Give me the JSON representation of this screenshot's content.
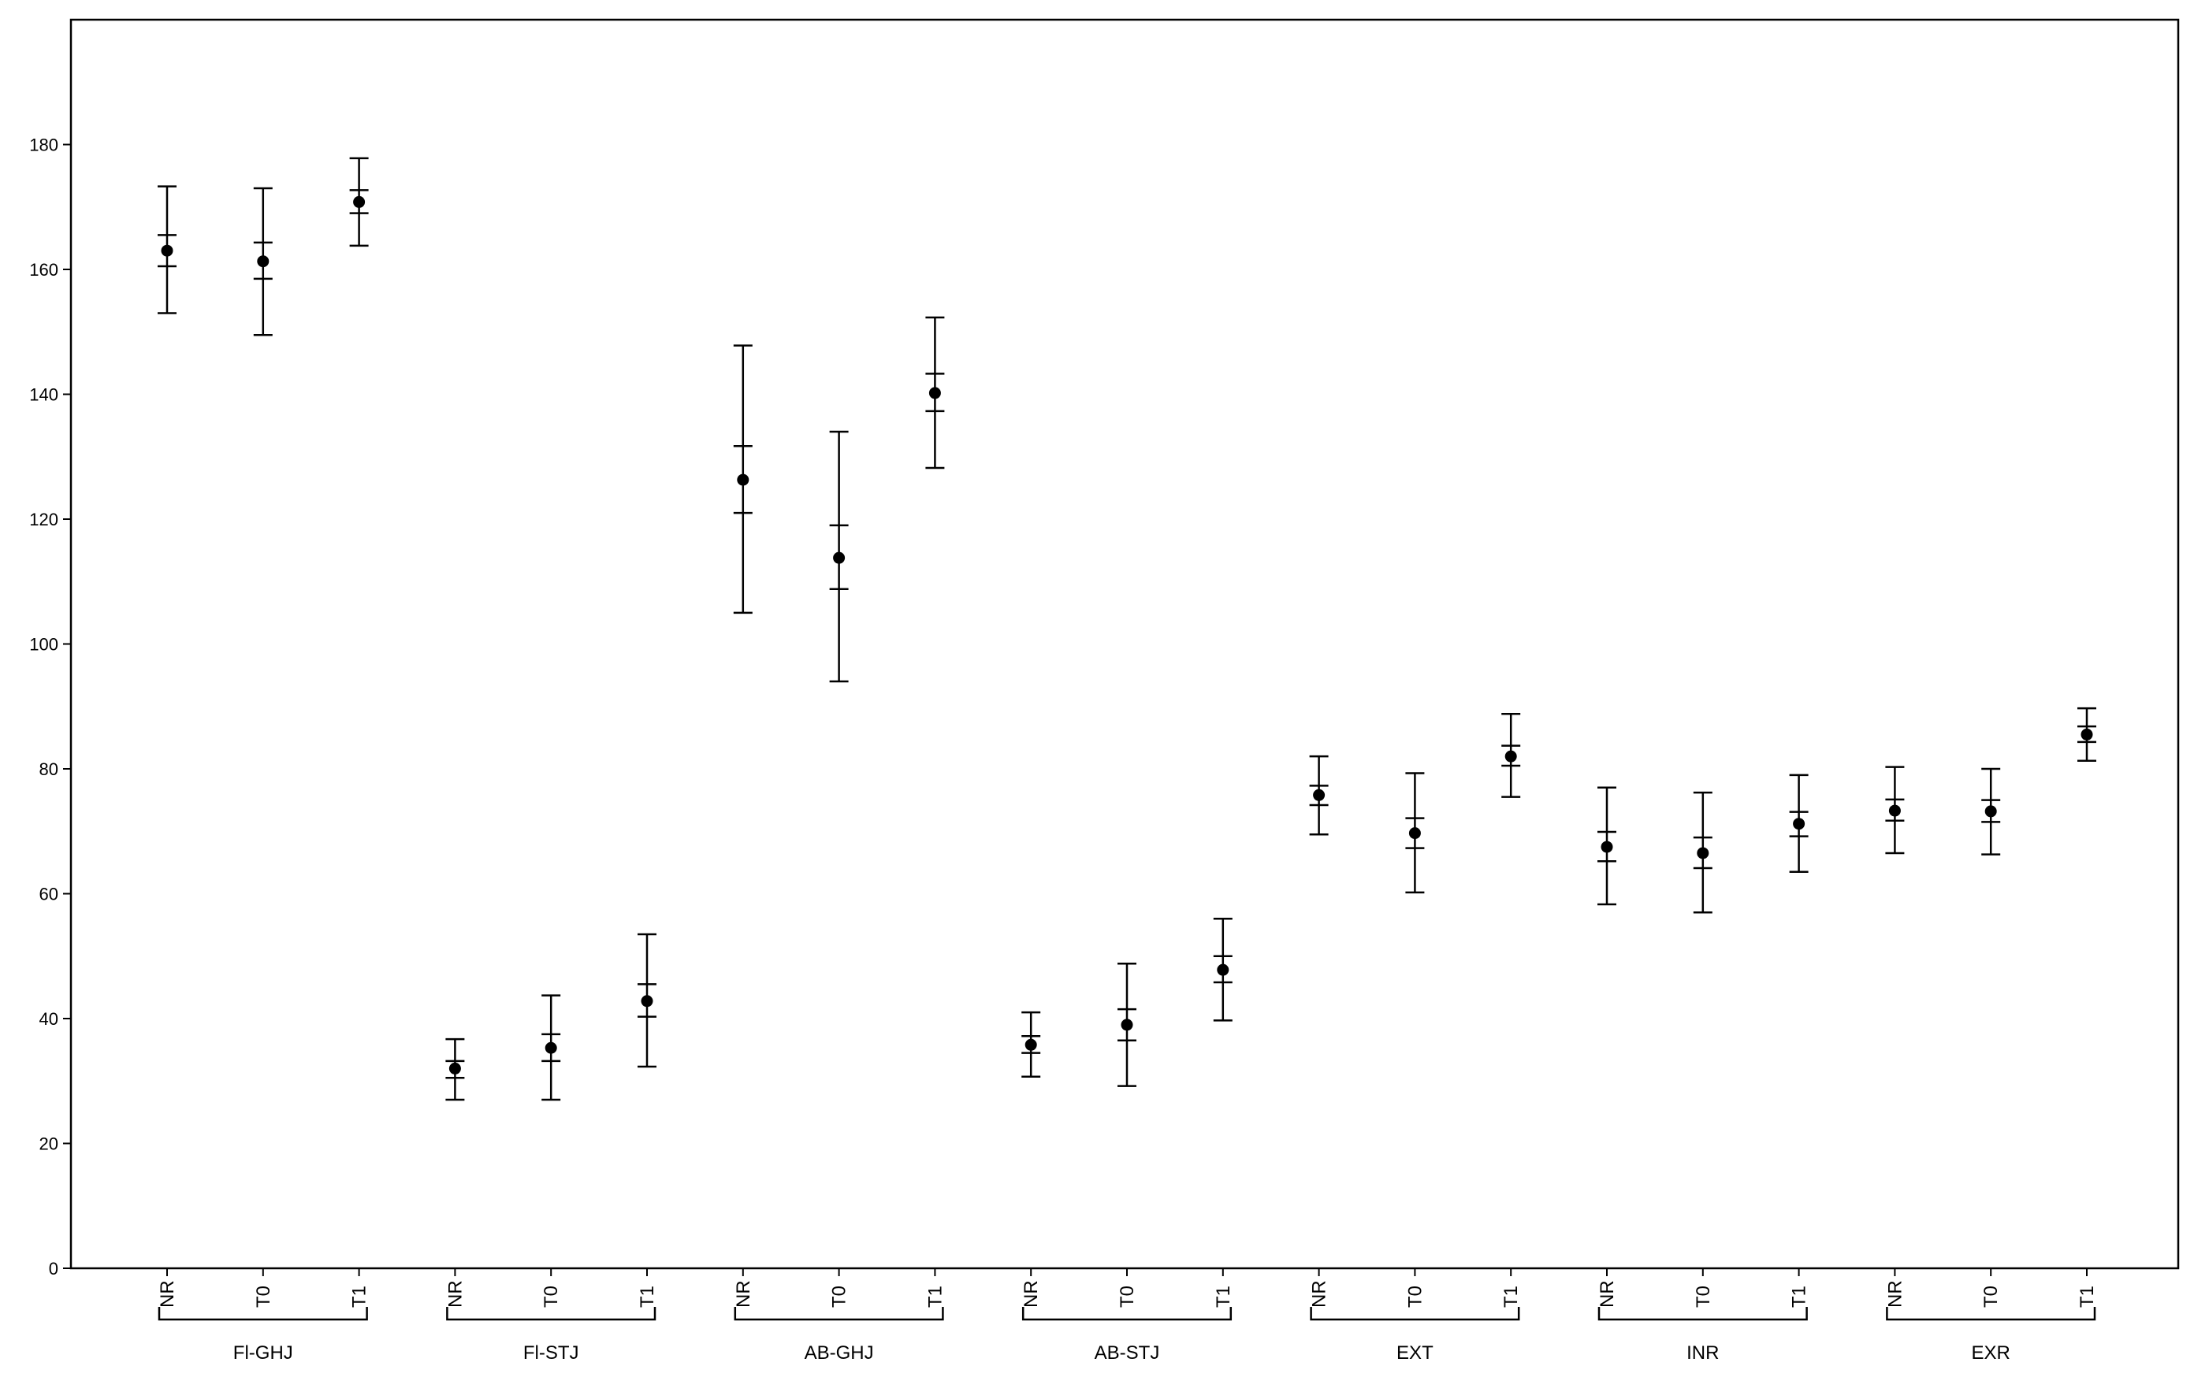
{
  "chart_data": {
    "type": "scatter",
    "title": "",
    "xlabel": "",
    "ylabel": "",
    "ylim": [
      0,
      200
    ],
    "yticks": [
      0,
      20,
      40,
      60,
      80,
      100,
      120,
      140,
      160,
      180
    ],
    "grid": false,
    "subcategories": [
      "NR",
      "T0",
      "T1"
    ],
    "groups": [
      {
        "name": "Fl-GHJ",
        "points": [
          {
            "label": "NR",
            "mean": 163,
            "ci_low": 160.5,
            "ci_high": 165.5,
            "min": 153,
            "max": 173.3
          },
          {
            "label": "T0",
            "mean": 161.3,
            "ci_low": 158.5,
            "ci_high": 164.3,
            "min": 149.5,
            "max": 173
          },
          {
            "label": "T1",
            "mean": 170.8,
            "ci_low": 169,
            "ci_high": 172.7,
            "min": 163.8,
            "max": 177.8
          }
        ]
      },
      {
        "name": "Fl-STJ",
        "points": [
          {
            "label": "NR",
            "mean": 32,
            "ci_low": 30.5,
            "ci_high": 33.2,
            "min": 27,
            "max": 36.7
          },
          {
            "label": "T0",
            "mean": 35.3,
            "ci_low": 33.2,
            "ci_high": 37.5,
            "min": 27,
            "max": 43.7
          },
          {
            "label": "T1",
            "mean": 42.8,
            "ci_low": 40.3,
            "ci_high": 45.5,
            "min": 32.3,
            "max": 53.5
          }
        ]
      },
      {
        "name": "AB-GHJ",
        "points": [
          {
            "label": "NR",
            "mean": 126.3,
            "ci_low": 121,
            "ci_high": 131.7,
            "min": 105,
            "max": 147.8
          },
          {
            "label": "T0",
            "mean": 113.8,
            "ci_low": 108.8,
            "ci_high": 119,
            "min": 94,
            "max": 134
          },
          {
            "label": "T1",
            "mean": 140.2,
            "ci_low": 137.3,
            "ci_high": 143.3,
            "min": 128.2,
            "max": 152.3
          }
        ]
      },
      {
        "name": "AB-STJ",
        "points": [
          {
            "label": "NR",
            "mean": 35.8,
            "ci_low": 34.5,
            "ci_high": 37.2,
            "min": 30.7,
            "max": 41
          },
          {
            "label": "T0",
            "mean": 39,
            "ci_low": 36.5,
            "ci_high": 41.5,
            "min": 29.2,
            "max": 48.8
          },
          {
            "label": "T1",
            "mean": 47.8,
            "ci_low": 45.8,
            "ci_high": 50,
            "min": 39.7,
            "max": 56
          }
        ]
      },
      {
        "name": "EXT",
        "points": [
          {
            "label": "NR",
            "mean": 75.8,
            "ci_low": 74.2,
            "ci_high": 77.3,
            "min": 69.5,
            "max": 82
          },
          {
            "label": "T0",
            "mean": 69.7,
            "ci_low": 67.3,
            "ci_high": 72.1,
            "min": 60.2,
            "max": 79.3
          },
          {
            "label": "T1",
            "mean": 82,
            "ci_low": 80.5,
            "ci_high": 83.7,
            "min": 75.5,
            "max": 88.8
          }
        ]
      },
      {
        "name": "INR",
        "points": [
          {
            "label": "NR",
            "mean": 67.5,
            "ci_low": 65.2,
            "ci_high": 69.9,
            "min": 58.3,
            "max": 77
          },
          {
            "label": "T0",
            "mean": 66.5,
            "ci_low": 64.1,
            "ci_high": 69,
            "min": 57,
            "max": 76.2
          },
          {
            "label": "T1",
            "mean": 71.2,
            "ci_low": 69.2,
            "ci_high": 73.1,
            "min": 63.5,
            "max": 79
          }
        ]
      },
      {
        "name": "EXR",
        "points": [
          {
            "label": "NR",
            "mean": 73.3,
            "ci_low": 71.7,
            "ci_high": 75.1,
            "min": 66.5,
            "max": 80.3
          },
          {
            "label": "T0",
            "mean": 73.2,
            "ci_low": 71.5,
            "ci_high": 75,
            "min": 66.3,
            "max": 80
          },
          {
            "label": "T1",
            "mean": 85.5,
            "ci_low": 84.3,
            "ci_high": 86.8,
            "min": 81.3,
            "max": 89.7
          }
        ]
      }
    ]
  }
}
